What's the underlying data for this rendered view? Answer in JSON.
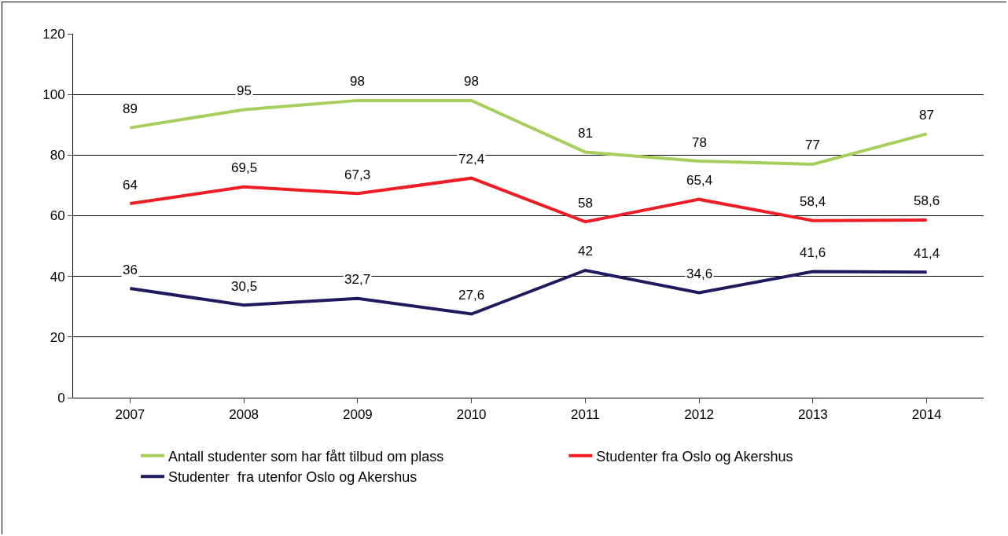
{
  "chart_data": {
    "type": "line",
    "categories": [
      "2007",
      "2008",
      "2009",
      "2010",
      "2011",
      "2012",
      "2013",
      "2014"
    ],
    "series": [
      {
        "name": "Antall studenter som har fått tilbud om plass",
        "color": "#a6ce5a",
        "values": [
          89,
          95,
          98,
          98,
          81,
          78,
          77,
          87
        ],
        "value_labels": [
          "89",
          "95",
          "98",
          "98",
          "81",
          "78",
          "77",
          "87"
        ]
      },
      {
        "name": "Studenter fra Oslo og Akershus",
        "color": "#ee1c25",
        "values": [
          64,
          69.5,
          67.3,
          72.4,
          58,
          65.4,
          58.4,
          58.6
        ],
        "value_labels": [
          "64",
          "69,5",
          "67,3",
          "72,4",
          "58",
          "65,4",
          "58,4",
          "58,6"
        ]
      },
      {
        "name": "Studenter  fra utenfor Oslo og Akershus",
        "color": "#1f1a5e",
        "values": [
          36,
          30.5,
          32.7,
          27.6,
          42,
          34.6,
          41.6,
          41.4
        ],
        "value_labels": [
          "36",
          "30,5",
          "32,7",
          "27,6",
          "42",
          "34,6",
          "41,6",
          "41,4"
        ]
      }
    ],
    "ylim": [
      0,
      120
    ],
    "yticks": [
      0,
      20,
      40,
      60,
      80,
      100,
      120
    ],
    "grid": "y",
    "legend": "bottom",
    "line_style": "solid"
  }
}
